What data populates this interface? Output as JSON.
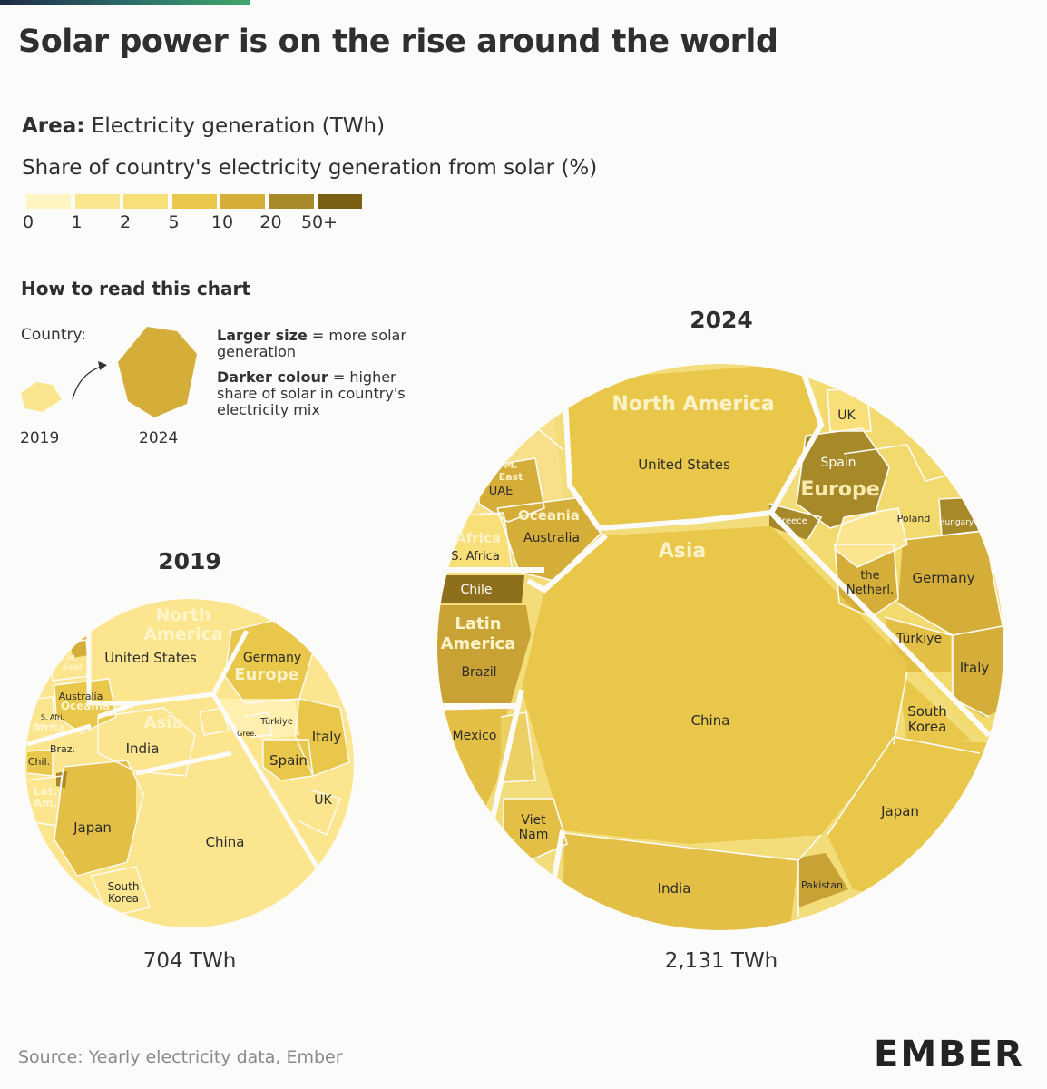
{
  "title": "Solar power is on the rise around the world",
  "area_label_bold": "Area:",
  "area_label_text": "Electricity generation (TWh)",
  "share_label": "Share of country's electricity generation from solar (%)",
  "legend": {
    "colors": [
      "#fff5c2",
      "#fbe68f",
      "#f8df78",
      "#e9c74a",
      "#d4ae38",
      "#a8892a",
      "#7a5f14"
    ],
    "labels": [
      "0",
      "1",
      "2",
      "5",
      "10",
      "20",
      "50+"
    ]
  },
  "how_to": {
    "title": "How to read this chart",
    "country_label": "Country:",
    "year_a": "2019",
    "year_b": "2024",
    "note1_bold": "Larger size",
    "note1_text": "= more solar generation",
    "note2_bold": "Darker colour",
    "note2_text": "= higher share of solar in country's electricity mix"
  },
  "chart_data": [
    {
      "type": "treemap",
      "year": "2019",
      "total_label": "704 TWh",
      "regions": [
        {
          "name": "North America",
          "countries": [
            "United States"
          ]
        },
        {
          "name": "Europe",
          "countries": [
            "Germany",
            "Italy",
            "Spain",
            "UK",
            "Türkiye",
            "Gree."
          ]
        },
        {
          "name": "Asia",
          "countries": [
            "China",
            "Japan",
            "India",
            "South Korea"
          ]
        },
        {
          "name": "Oceania",
          "countries": [
            "Australia"
          ]
        },
        {
          "name": "M. East",
          "countries": []
        },
        {
          "name": "Africa",
          "countries": [
            "S. Afri."
          ]
        },
        {
          "name": "Lat. Am.",
          "countries": [
            "Braz.",
            "Chil."
          ]
        }
      ]
    },
    {
      "type": "treemap",
      "year": "2024",
      "total_label": "2,131 TWh",
      "regions": [
        {
          "name": "North America",
          "countries": [
            "United States"
          ]
        },
        {
          "name": "Europe",
          "countries": [
            "UK",
            "Spain",
            "Greece",
            "Poland",
            "Hungary",
            "the Netherl.",
            "Germany",
            "Türkiye",
            "Italy"
          ]
        },
        {
          "name": "Asia",
          "countries": [
            "China",
            "India",
            "Japan",
            "South Korea",
            "Viet Nam",
            "Pakistan"
          ]
        },
        {
          "name": "Oceania",
          "countries": [
            "Australia"
          ]
        },
        {
          "name": "M. East",
          "countries": [
            "UAE"
          ]
        },
        {
          "name": "Africa",
          "countries": [
            "S. Africa"
          ]
        },
        {
          "name": "Latin America",
          "countries": [
            "Chile",
            "Brazil",
            "Mexico"
          ]
        }
      ]
    }
  ],
  "source": "Source: Yearly electricity data, Ember",
  "logo": "EMBER"
}
